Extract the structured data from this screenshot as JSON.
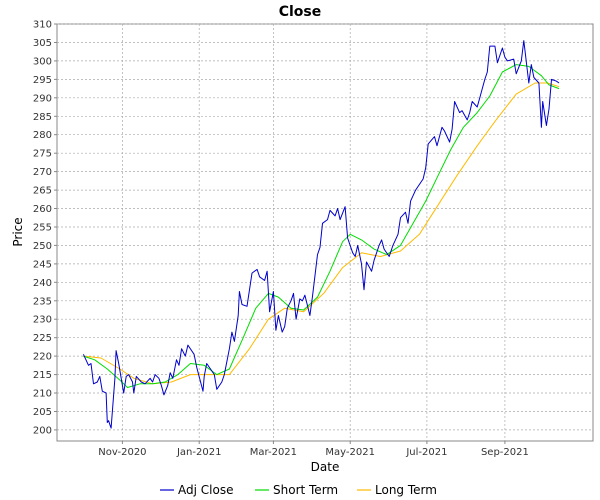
{
  "chart_data": {
    "type": "line",
    "title": "Close",
    "xlabel": "Date",
    "ylabel": "Price",
    "x_range": [
      "2020-09-10",
      "2021-11-10"
    ],
    "ylim": [
      197,
      310
    ],
    "y_ticks": [
      200,
      205,
      210,
      215,
      220,
      225,
      230,
      235,
      240,
      245,
      250,
      255,
      260,
      265,
      270,
      275,
      280,
      285,
      290,
      295,
      300,
      305,
      310
    ],
    "x_ticks": [
      {
        "date": "2020-11-01",
        "label": "Nov-2020"
      },
      {
        "date": "2021-01-01",
        "label": "Jan-2021"
      },
      {
        "date": "2021-03-01",
        "label": "Mar-2021"
      },
      {
        "date": "2021-05-01",
        "label": "May-2021"
      },
      {
        "date": "2021-07-01",
        "label": "Jul-2021"
      },
      {
        "date": "2021-09-01",
        "label": "Sep-2021"
      }
    ],
    "grid": true,
    "legend_position": "bottom",
    "series": [
      {
        "name": "Adj Close",
        "color": "#0000cc",
        "points": [
          [
            "2020-10-01",
            220.5
          ],
          [
            "2020-10-05",
            217.5
          ],
          [
            "2020-10-07",
            218.0
          ],
          [
            "2020-10-09",
            212.5
          ],
          [
            "2020-10-12",
            213.0
          ],
          [
            "2020-10-14",
            214.5
          ],
          [
            "2020-10-16",
            210.5
          ],
          [
            "2020-10-19",
            210.0
          ],
          [
            "2020-10-20",
            202.0
          ],
          [
            "2020-10-21",
            202.5
          ],
          [
            "2020-10-22",
            201.5
          ],
          [
            "2020-10-23",
            200.5
          ],
          [
            "2020-10-26",
            214.0
          ],
          [
            "2020-10-27",
            221.5
          ],
          [
            "2020-10-29",
            218.0
          ],
          [
            "2020-11-02",
            210.0
          ],
          [
            "2020-11-04",
            214.5
          ],
          [
            "2020-11-06",
            215.0
          ],
          [
            "2020-11-09",
            213.0
          ],
          [
            "2020-11-10",
            210.0
          ],
          [
            "2020-11-12",
            214.5
          ],
          [
            "2020-11-16",
            213.0
          ],
          [
            "2020-11-19",
            212.5
          ],
          [
            "2020-11-23",
            214.0
          ],
          [
            "2020-11-25",
            213.0
          ],
          [
            "2020-11-27",
            215.0
          ],
          [
            "2020-11-30",
            214.0
          ],
          [
            "2020-12-02",
            212.0
          ],
          [
            "2020-12-04",
            209.5
          ],
          [
            "2020-12-07",
            212.0
          ],
          [
            "2020-12-09",
            215.5
          ],
          [
            "2020-12-11",
            214.0
          ],
          [
            "2020-12-14",
            219.0
          ],
          [
            "2020-12-16",
            217.5
          ],
          [
            "2020-12-18",
            222.0
          ],
          [
            "2020-12-21",
            220.0
          ],
          [
            "2020-12-23",
            223.0
          ],
          [
            "2020-12-28",
            220.5
          ],
          [
            "2020-12-30",
            217.0
          ],
          [
            "2021-01-04",
            210.5
          ],
          [
            "2021-01-05",
            214.5
          ],
          [
            "2021-01-07",
            218.0
          ],
          [
            "2021-01-11",
            216.0
          ],
          [
            "2021-01-13",
            215.0
          ],
          [
            "2021-01-15",
            211.0
          ],
          [
            "2021-01-19",
            213.0
          ],
          [
            "2021-01-21",
            215.0
          ],
          [
            "2021-01-25",
            222.0
          ],
          [
            "2021-01-27",
            226.5
          ],
          [
            "2021-01-29",
            224.0
          ],
          [
            "2021-02-01",
            231.0
          ],
          [
            "2021-02-02",
            237.5
          ],
          [
            "2021-02-04",
            234.0
          ],
          [
            "2021-02-08",
            233.5
          ],
          [
            "2021-02-10",
            238.0
          ],
          [
            "2021-02-12",
            242.5
          ],
          [
            "2021-02-16",
            243.5
          ],
          [
            "2021-02-18",
            241.5
          ],
          [
            "2021-02-22",
            240.5
          ],
          [
            "2021-02-24",
            243.0
          ],
          [
            "2021-02-26",
            232.0
          ],
          [
            "2021-03-01",
            237.5
          ],
          [
            "2021-03-03",
            227.0
          ],
          [
            "2021-03-05",
            231.0
          ],
          [
            "2021-03-08",
            226.5
          ],
          [
            "2021-03-10",
            228.0
          ],
          [
            "2021-03-12",
            233.0
          ],
          [
            "2021-03-15",
            235.0
          ],
          [
            "2021-03-17",
            237.0
          ],
          [
            "2021-03-19",
            230.0
          ],
          [
            "2021-03-22",
            235.5
          ],
          [
            "2021-03-24",
            235.0
          ],
          [
            "2021-03-26",
            236.5
          ],
          [
            "2021-03-30",
            231.0
          ],
          [
            "2021-04-01",
            236.0
          ],
          [
            "2021-04-05",
            247.5
          ],
          [
            "2021-04-07",
            249.5
          ],
          [
            "2021-04-09",
            256.0
          ],
          [
            "2021-04-13",
            257.0
          ],
          [
            "2021-04-15",
            259.5
          ],
          [
            "2021-04-19",
            258.0
          ],
          [
            "2021-04-21",
            260.0
          ],
          [
            "2021-04-23",
            257.0
          ],
          [
            "2021-04-27",
            260.5
          ],
          [
            "2021-04-29",
            252.0
          ],
          [
            "2021-05-03",
            248.0
          ],
          [
            "2021-05-05",
            247.0
          ],
          [
            "2021-05-07",
            250.0
          ],
          [
            "2021-05-10",
            245.0
          ],
          [
            "2021-05-12",
            238.0
          ],
          [
            "2021-05-14",
            245.5
          ],
          [
            "2021-05-18",
            243.0
          ],
          [
            "2021-05-20",
            246.0
          ],
          [
            "2021-05-24",
            250.0
          ],
          [
            "2021-05-26",
            251.5
          ],
          [
            "2021-05-28",
            249.0
          ],
          [
            "2021-06-01",
            247.0
          ],
          [
            "2021-06-04",
            250.0
          ],
          [
            "2021-06-08",
            253.0
          ],
          [
            "2021-06-10",
            257.5
          ],
          [
            "2021-06-14",
            259.0
          ],
          [
            "2021-06-16",
            256.0
          ],
          [
            "2021-06-18",
            262.0
          ],
          [
            "2021-06-22",
            265.0
          ],
          [
            "2021-06-24",
            266.0
          ],
          [
            "2021-06-28",
            268.0
          ],
          [
            "2021-06-30",
            271.0
          ],
          [
            "2021-07-02",
            277.5
          ],
          [
            "2021-07-07",
            279.5
          ],
          [
            "2021-07-09",
            277.0
          ],
          [
            "2021-07-13",
            282.0
          ],
          [
            "2021-07-15",
            281.0
          ],
          [
            "2021-07-19",
            278.0
          ],
          [
            "2021-07-21",
            281.5
          ],
          [
            "2021-07-23",
            289.0
          ],
          [
            "2021-07-27",
            286.0
          ],
          [
            "2021-07-29",
            286.5
          ],
          [
            "2021-08-02",
            284.0
          ],
          [
            "2021-08-04",
            286.0
          ],
          [
            "2021-08-06",
            289.0
          ],
          [
            "2021-08-10",
            287.5
          ],
          [
            "2021-08-12",
            290.0
          ],
          [
            "2021-08-16",
            295.0
          ],
          [
            "2021-08-18",
            297.0
          ],
          [
            "2021-08-20",
            304.0
          ],
          [
            "2021-08-24",
            304.0
          ],
          [
            "2021-08-26",
            299.5
          ],
          [
            "2021-08-30",
            303.5
          ],
          [
            "2021-09-01",
            301.0
          ],
          [
            "2021-09-03",
            300.0
          ],
          [
            "2021-09-08",
            300.5
          ],
          [
            "2021-09-10",
            296.5
          ],
          [
            "2021-09-14",
            300.0
          ],
          [
            "2021-09-16",
            305.5
          ],
          [
            "2021-09-20",
            294.0
          ],
          [
            "2021-09-22",
            299.0
          ],
          [
            "2021-09-24",
            295.5
          ],
          [
            "2021-09-28",
            294.0
          ],
          [
            "2021-09-30",
            282.0
          ],
          [
            "2021-10-01",
            289.0
          ],
          [
            "2021-10-04",
            282.5
          ],
          [
            "2021-10-06",
            287.0
          ],
          [
            "2021-10-08",
            295.0
          ],
          [
            "2021-10-12",
            294.5
          ],
          [
            "2021-10-14",
            294.0
          ]
        ]
      },
      {
        "name": "Short Term",
        "color": "#00dd00",
        "points": [
          [
            "2020-10-01",
            220.0
          ],
          [
            "2020-10-10",
            219.0
          ],
          [
            "2020-10-20",
            216.5
          ],
          [
            "2020-10-30",
            213.5
          ],
          [
            "2020-11-05",
            211.5
          ],
          [
            "2020-11-15",
            212.5
          ],
          [
            "2020-11-25",
            212.5
          ],
          [
            "2020-12-05",
            213.0
          ],
          [
            "2020-12-15",
            215.0
          ],
          [
            "2020-12-25",
            218.0
          ],
          [
            "2021-01-05",
            217.5
          ],
          [
            "2021-01-15",
            215.0
          ],
          [
            "2021-01-25",
            216.5
          ],
          [
            "2021-02-05",
            225.0
          ],
          [
            "2021-02-15",
            233.0
          ],
          [
            "2021-02-25",
            237.0
          ],
          [
            "2021-03-05",
            236.0
          ],
          [
            "2021-03-15",
            233.0
          ],
          [
            "2021-03-25",
            232.5
          ],
          [
            "2021-04-05",
            236.0
          ],
          [
            "2021-04-15",
            243.0
          ],
          [
            "2021-04-25",
            251.0
          ],
          [
            "2021-05-01",
            253.0
          ],
          [
            "2021-05-10",
            251.5
          ],
          [
            "2021-05-20",
            249.0
          ],
          [
            "2021-05-30",
            247.5
          ],
          [
            "2021-06-10",
            250.0
          ],
          [
            "2021-06-20",
            256.0
          ],
          [
            "2021-06-30",
            262.0
          ],
          [
            "2021-07-10",
            269.0
          ],
          [
            "2021-07-20",
            276.0
          ],
          [
            "2021-07-30",
            282.0
          ],
          [
            "2021-08-10",
            286.0
          ],
          [
            "2021-08-20",
            290.5
          ],
          [
            "2021-08-30",
            297.0
          ],
          [
            "2021-09-10",
            299.0
          ],
          [
            "2021-09-20",
            298.5
          ],
          [
            "2021-09-30",
            296.0
          ],
          [
            "2021-10-06",
            293.5
          ],
          [
            "2021-10-14",
            292.5
          ]
        ]
      },
      {
        "name": "Long Term",
        "color": "#ffbb00",
        "points": [
          [
            "2020-10-01",
            220.0
          ],
          [
            "2020-10-15",
            219.5
          ],
          [
            "2020-10-30",
            216.5
          ],
          [
            "2020-11-10",
            214.0
          ],
          [
            "2020-11-25",
            212.5
          ],
          [
            "2020-12-10",
            213.0
          ],
          [
            "2020-12-25",
            215.0
          ],
          [
            "2021-01-10",
            215.0
          ],
          [
            "2021-01-25",
            215.0
          ],
          [
            "2021-02-10",
            222.0
          ],
          [
            "2021-02-25",
            230.0
          ],
          [
            "2021-03-10",
            233.0
          ],
          [
            "2021-03-25",
            232.0
          ],
          [
            "2021-04-10",
            237.0
          ],
          [
            "2021-04-25",
            244.0
          ],
          [
            "2021-05-10",
            248.0
          ],
          [
            "2021-05-25",
            247.0
          ],
          [
            "2021-06-10",
            248.5
          ],
          [
            "2021-06-25",
            253.0
          ],
          [
            "2021-07-10",
            261.0
          ],
          [
            "2021-07-25",
            269.0
          ],
          [
            "2021-08-10",
            277.0
          ],
          [
            "2021-08-25",
            284.0
          ],
          [
            "2021-09-10",
            291.0
          ],
          [
            "2021-09-25",
            294.0
          ],
          [
            "2021-10-05",
            294.0
          ],
          [
            "2021-10-14",
            293.0
          ]
        ]
      }
    ]
  }
}
